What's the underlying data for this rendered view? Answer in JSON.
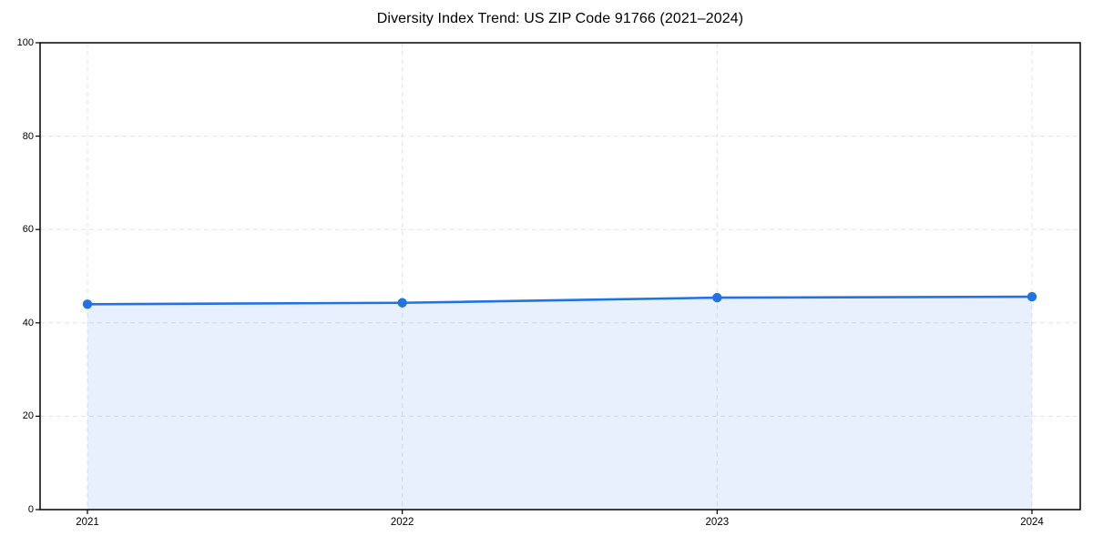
{
  "chart_data": {
    "type": "area",
    "title": "Diversity Index Trend: US ZIP Code 91766 (2021–2024)",
    "xlabel": "",
    "ylabel": "",
    "x": [
      2021,
      2022,
      2023,
      2024
    ],
    "xticks": [
      "2021",
      "2022",
      "2023",
      "2024"
    ],
    "series": [
      {
        "name": "Diversity Index",
        "values": [
          44.0,
          44.3,
          45.4,
          45.6
        ]
      }
    ],
    "ylim": [
      0,
      100
    ],
    "yticks": [
      0,
      20,
      40,
      60,
      80,
      100
    ],
    "grid": "dashed, horizontal and vertical at every tick",
    "legend": "none",
    "area_fill": true,
    "marker": "circle",
    "colors": {
      "line": "#2173e3",
      "marker": "#2173e3",
      "fill": "rgba(33,115,227,0.11)",
      "grid": "#e4e4e4",
      "spine": "#000000",
      "text": "#000000"
    }
  }
}
